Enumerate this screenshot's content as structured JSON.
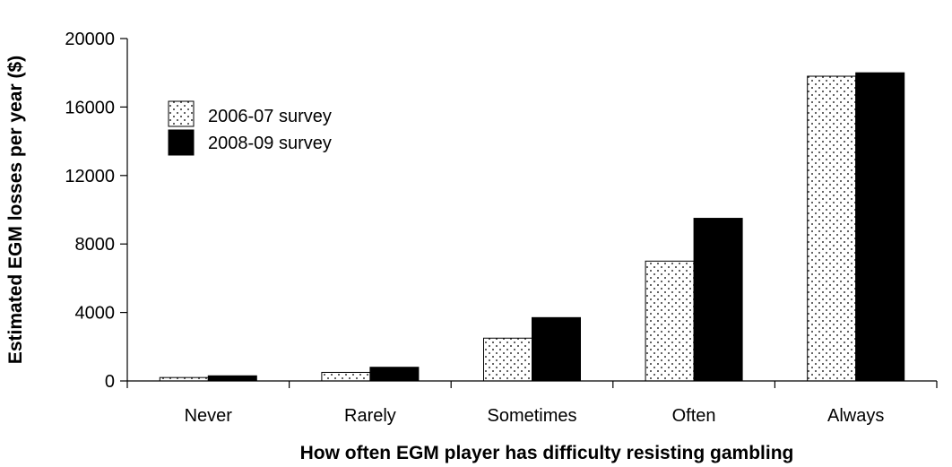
{
  "chart_data": {
    "type": "bar",
    "title": "",
    "xlabel": "How often EGM player has difficulty resisting gambling",
    "ylabel": "Estimated EGM losses per year ($)",
    "categories": [
      "Never",
      "Rarely",
      "Sometimes",
      "Often",
      "Always"
    ],
    "series": [
      {
        "name": "2006-07 survey",
        "values": [
          200,
          500,
          2500,
          7000,
          17800
        ],
        "fill": "dotted",
        "color": "#ffffff"
      },
      {
        "name": "2008-09 survey",
        "values": [
          300,
          800,
          3700,
          9500,
          18000
        ],
        "fill": "solid",
        "color": "#000000"
      }
    ],
    "ylim": [
      0,
      20000
    ],
    "yticks": [
      0,
      4000,
      8000,
      12000,
      16000,
      20000
    ],
    "grid": false,
    "legend_position": "top-left"
  }
}
